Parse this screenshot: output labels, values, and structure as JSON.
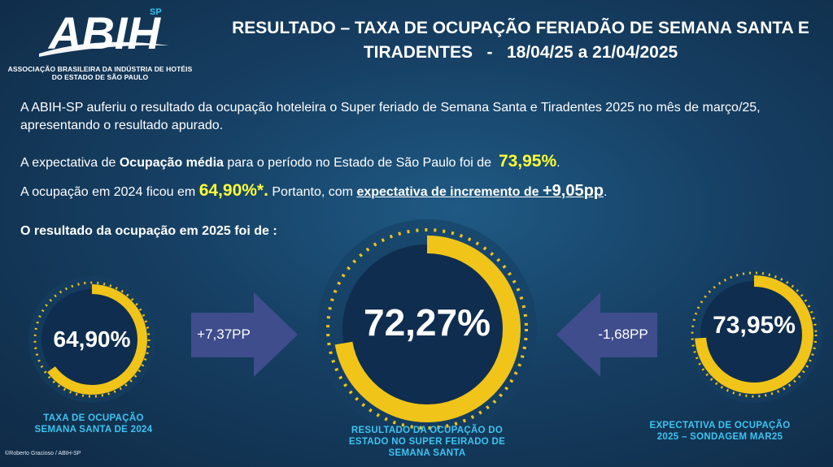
{
  "logo": {
    "text": "ABIH",
    "superscript": "SP",
    "subtitle_line1": "ASSOCIAÇÃO BRASILEIRA DA INDÚSTRIA DE HOTÉIS",
    "subtitle_line2": "DO ESTADO DE SÃO PAULO"
  },
  "title": {
    "line1": "RESULTADO – TAXA DE OCUPAÇÃO FERIADÃO DE SEMANA SANTA E",
    "line2": "TIRADENTES   -   18/04/25 a 21/04/2025"
  },
  "intro": {
    "line1": "A ABIH-SP auferiu o resultado da ocupação hoteleira o Super feriado de Semana Santa e Tiradentes 2025 no mês de março/25,",
    "line2": "apresentando o resultado apurado."
  },
  "expectation": {
    "prefix": "A expectativa de ",
    "bold": "Ocupação média",
    "middle": " para o período no Estado de São Paulo foi de  ",
    "value": "73,95%",
    "suffix": "."
  },
  "previous": {
    "prefix": "A ocupação em 2024 ficou em ",
    "value": "64,90%*.",
    "middle": " Portanto, com ",
    "underline_text": "expectativa de incremento de ",
    "increment": "+9,05pp",
    "suffix": "."
  },
  "result_heading": "O resultado da ocupação em 2025 foi de :",
  "gauges": {
    "left": {
      "value": "64,90%",
      "fill": 0.649,
      "caption_line1": "TAXA DE OCUPAÇÃO",
      "caption_line2": "SEMANA SANTA DE 2024"
    },
    "center": {
      "value": "72,27%",
      "fill": 0.7227,
      "caption_line1": "RESULTADO DA OCUPAÇÃO DO",
      "caption_line2": "ESTADO NO SUPER FEIRADO DE",
      "caption_line3": "SEMANA SANTA"
    },
    "right": {
      "value": "73,95%",
      "fill": 0.7395,
      "caption_line1": "EXPECTATIVA DE OCUPAÇÃO",
      "caption_line2": "2025 – SONDAGEM MAR25"
    }
  },
  "arrows": {
    "left": "+7,37PP",
    "right": "-1,68PP"
  },
  "credit": "©Roberto Gracioso / ABIH-SP",
  "colors": {
    "background": "#163f63",
    "ring": "#f0c419",
    "dots": "#f0c419",
    "gauge_inner": "#0f2d4f",
    "arrow": "#3f4d8c",
    "caption": "#3ec4f0",
    "highlight": "#ffff33"
  }
}
